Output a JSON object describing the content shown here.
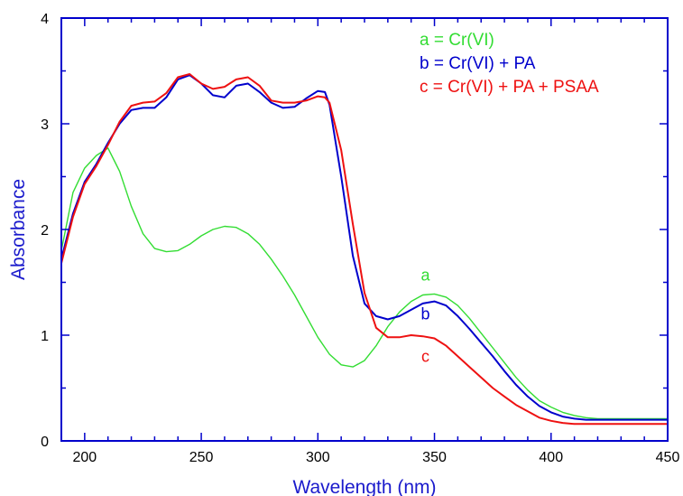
{
  "chart_data": {
    "type": "line",
    "xlabel": "Wavelength (nm)",
    "ylabel": "Absorbance",
    "xlim": [
      190,
      450
    ],
    "ylim": [
      0,
      4
    ],
    "xticks": [
      200,
      250,
      300,
      350,
      400,
      450
    ],
    "yticks": [
      0,
      1,
      2,
      3,
      4
    ],
    "grid": false,
    "legend_position": "top-right",
    "axis_color": "#0000cc",
    "legend": [
      {
        "text": "a = Cr(VI)",
        "color": "#33dd33"
      },
      {
        "text": "b = Cr(VI) + PA",
        "color": "#0000cc"
      },
      {
        "text": "c = Cr(VI) + PA + PSAA",
        "color": "#ee1111"
      }
    ],
    "series": [
      {
        "name": "a",
        "color": "#33dd33",
        "x": [
          190,
          195,
          200,
          205,
          210,
          215,
          220,
          225,
          230,
          235,
          240,
          245,
          250,
          255,
          260,
          265,
          270,
          275,
          280,
          285,
          290,
          295,
          300,
          305,
          310,
          315,
          320,
          325,
          330,
          335,
          340,
          345,
          350,
          355,
          360,
          365,
          370,
          375,
          380,
          385,
          390,
          395,
          400,
          405,
          410,
          415,
          420,
          430,
          440,
          450
        ],
        "y": [
          1.8,
          2.35,
          2.58,
          2.7,
          2.77,
          2.55,
          2.22,
          1.96,
          1.82,
          1.79,
          1.8,
          1.86,
          1.94,
          2.0,
          2.03,
          2.02,
          1.96,
          1.86,
          1.72,
          1.56,
          1.38,
          1.18,
          0.98,
          0.82,
          0.72,
          0.7,
          0.76,
          0.9,
          1.08,
          1.22,
          1.32,
          1.38,
          1.39,
          1.36,
          1.28,
          1.16,
          1.02,
          0.88,
          0.74,
          0.6,
          0.48,
          0.38,
          0.32,
          0.27,
          0.24,
          0.22,
          0.21,
          0.21,
          0.21,
          0.21
        ]
      },
      {
        "name": "b",
        "color": "#0000cc",
        "x": [
          190,
          195,
          200,
          205,
          210,
          215,
          220,
          225,
          230,
          235,
          240,
          245,
          250,
          255,
          260,
          265,
          270,
          275,
          280,
          285,
          290,
          295,
          300,
          303,
          305,
          310,
          315,
          320,
          325,
          330,
          335,
          340,
          345,
          350,
          355,
          360,
          365,
          370,
          375,
          380,
          385,
          390,
          395,
          400,
          405,
          410,
          415,
          420,
          430,
          440,
          450
        ],
        "y": [
          1.72,
          2.15,
          2.45,
          2.62,
          2.82,
          3.0,
          3.13,
          3.15,
          3.15,
          3.25,
          3.42,
          3.46,
          3.38,
          3.27,
          3.25,
          3.36,
          3.38,
          3.3,
          3.2,
          3.15,
          3.16,
          3.24,
          3.31,
          3.3,
          3.18,
          2.5,
          1.75,
          1.3,
          1.18,
          1.15,
          1.18,
          1.24,
          1.3,
          1.32,
          1.28,
          1.18,
          1.06,
          0.93,
          0.8,
          0.66,
          0.53,
          0.42,
          0.33,
          0.27,
          0.23,
          0.21,
          0.2,
          0.2,
          0.2,
          0.2,
          0.2
        ]
      },
      {
        "name": "c",
        "color": "#ee1111",
        "x": [
          190,
          195,
          200,
          205,
          210,
          215,
          220,
          225,
          230,
          235,
          240,
          245,
          250,
          255,
          260,
          265,
          270,
          275,
          280,
          285,
          290,
          295,
          300,
          303,
          305,
          310,
          315,
          320,
          325,
          330,
          335,
          340,
          345,
          350,
          355,
          360,
          365,
          370,
          375,
          380,
          385,
          390,
          395,
          400,
          405,
          410,
          415,
          420,
          430,
          440,
          450
        ],
        "y": [
          1.68,
          2.12,
          2.43,
          2.6,
          2.8,
          3.02,
          3.17,
          3.2,
          3.21,
          3.29,
          3.44,
          3.47,
          3.38,
          3.33,
          3.35,
          3.42,
          3.44,
          3.36,
          3.22,
          3.2,
          3.2,
          3.22,
          3.26,
          3.25,
          3.2,
          2.75,
          2.05,
          1.4,
          1.07,
          0.98,
          0.98,
          1.0,
          0.99,
          0.97,
          0.9,
          0.8,
          0.7,
          0.6,
          0.5,
          0.42,
          0.34,
          0.28,
          0.22,
          0.19,
          0.17,
          0.16,
          0.16,
          0.16,
          0.16,
          0.16,
          0.16
        ]
      }
    ],
    "curve_labels": [
      {
        "text": "a",
        "color": "#33dd33",
        "x": 350,
        "y": 1.57
      },
      {
        "text": "b",
        "color": "#0000cc",
        "x": 350,
        "y": 1.2
      },
      {
        "text": "c",
        "color": "#ee1111",
        "x": 350,
        "y": 0.8
      }
    ]
  }
}
